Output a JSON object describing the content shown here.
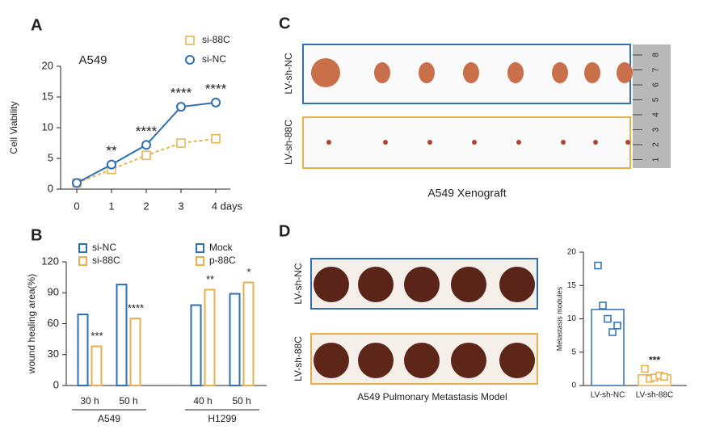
{
  "panels": [
    "A",
    "B",
    "C",
    "D"
  ],
  "chart_data": [
    {
      "type": "line",
      "title": "A549",
      "y_label": "Cell Viability",
      "categories": [
        "0",
        "1",
        "2",
        "3",
        "4 days"
      ],
      "series": [
        {
          "name": "si-88C",
          "color": "#e8b04a",
          "dashed": true,
          "values": [
            1,
            3.2,
            5.5,
            7.5,
            8.2
          ]
        },
        {
          "name": "si-NC",
          "color": "#2e6fb5",
          "dashed": false,
          "values": [
            1,
            4,
            7.2,
            13.4,
            14.1
          ]
        }
      ],
      "annotations": [
        null,
        "**",
        "****",
        "****",
        "****"
      ],
      "ylim": [
        0,
        20
      ],
      "yticks": [
        0,
        5,
        10,
        15,
        20
      ]
    },
    {
      "type": "bar",
      "y_label": "wound healing area(%)",
      "categories": [
        "30 h",
        "50 h",
        "40 h",
        "50 h"
      ],
      "groups": [
        {
          "name": "A549",
          "categories": [
            0,
            1
          ]
        },
        {
          "name": "H1299",
          "categories": [
            2,
            3
          ]
        }
      ],
      "series": [
        {
          "name": "si-NC",
          "color": "#2e6fb5",
          "values": [
            69,
            98,
            null,
            null
          ]
        },
        {
          "name": "si-88C",
          "color": "#e8b04a",
          "values": [
            38,
            65,
            null,
            null
          ]
        },
        {
          "name": "Mock",
          "color": "#2e6fb5",
          "values": [
            null,
            null,
            78,
            89
          ]
        },
        {
          "name": "p-88C",
          "color": "#e8b04a",
          "values": [
            null,
            null,
            93,
            100
          ]
        }
      ],
      "annotations": [
        "***",
        "****",
        "**",
        "*"
      ],
      "ylim": [
        0,
        120
      ],
      "yticks": [
        0,
        30,
        60,
        90,
        120
      ]
    },
    {
      "type": "bar_points",
      "y_label": "Metastasis modules",
      "categories": [
        "LV-sh-NC",
        "LV-sh-88C"
      ],
      "colors": [
        "#2e6fb5",
        "#e8b04a"
      ],
      "values": [
        11.4,
        1.6
      ],
      "points": [
        [
          18,
          12,
          10,
          8,
          9
        ],
        [
          2.5,
          1,
          1.2,
          1.5,
          1.3
        ]
      ],
      "annotations": [
        null,
        "***"
      ],
      "ylim": [
        0,
        20
      ],
      "yticks": [
        0,
        5,
        10,
        15,
        20
      ]
    }
  ],
  "xenograft": {
    "rows": [
      "LV-sh-NC",
      "LV-sh-88C"
    ],
    "caption": "A549   Xenograft",
    "ruler": [
      "8",
      "7",
      "6",
      "5",
      "4",
      "3",
      "2",
      "1"
    ]
  },
  "metastasis": {
    "rows": [
      "LV-sh-NC",
      "LV-sh-88C"
    ],
    "caption": "A549 Pulmonary Metastasis Model"
  }
}
